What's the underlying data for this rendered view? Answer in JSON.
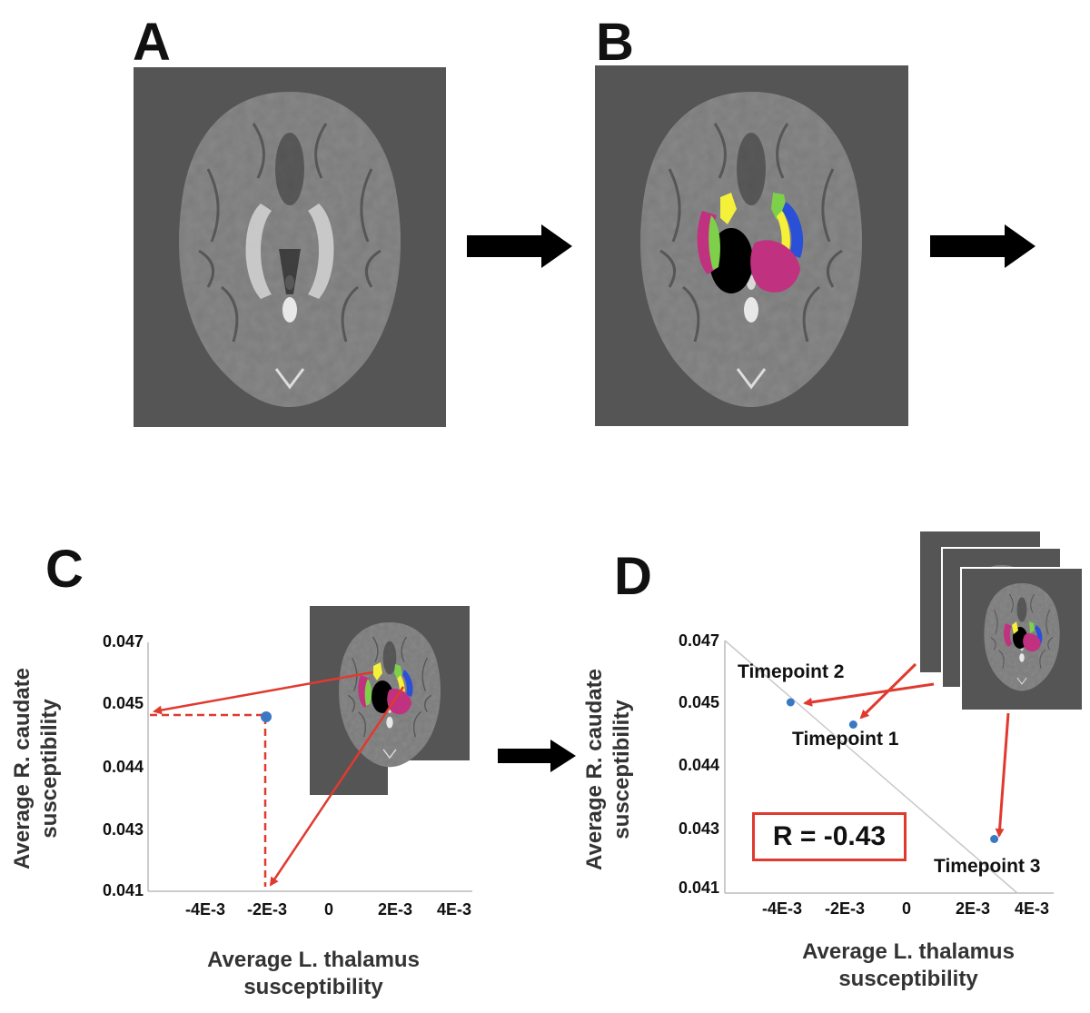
{
  "panels": {
    "a": {
      "letter": "A"
    },
    "b": {
      "letter": "B"
    },
    "c": {
      "letter": "C"
    },
    "d": {
      "letter": "D"
    }
  },
  "colors": {
    "scan_background": "#555555",
    "point": "#3a78c4",
    "annotation": "#e03a2f",
    "segment_yellow": "#f5f03a",
    "segment_green": "#7ed04b",
    "segment_magenta": "#c0317f",
    "segment_blue": "#2a50d8"
  },
  "icons": {
    "step_arrow": "right-arrow-icon"
  },
  "chart_data": [
    {
      "panel": "C",
      "type": "scatter",
      "xlabel": "Average L. thalamus susceptibility",
      "ylabel": "Average R. caudate susceptibility",
      "x_ticks": [
        "-4E-3",
        "-2E-3",
        "0",
        "2E-3",
        "4E-3"
      ],
      "y_ticks": [
        "0.047",
        "0.045",
        "0.044",
        "0.043",
        "0.041"
      ],
      "points": [
        {
          "x": -0.002,
          "y": 0.0448
        }
      ]
    },
    {
      "panel": "D",
      "type": "scatter",
      "xlabel": "Average L. thalamus susceptibility",
      "ylabel": "Average R. caudate susceptibility",
      "x_ticks": [
        "-4E-3",
        "-2E-3",
        "0",
        "2E-3",
        "4E-3"
      ],
      "y_ticks": [
        "0.047",
        "0.045",
        "0.044",
        "0.043",
        "0.041"
      ],
      "points": [
        {
          "label": "Timepoint 1",
          "x": -0.0017,
          "y": 0.04465
        },
        {
          "label": "Timepoint 2",
          "x": -0.0037,
          "y": 0.045
        },
        {
          "label": "Timepoint 3",
          "x": 0.0028,
          "y": 0.0427
        }
      ],
      "correlation_label": "R = -0.43"
    }
  ]
}
